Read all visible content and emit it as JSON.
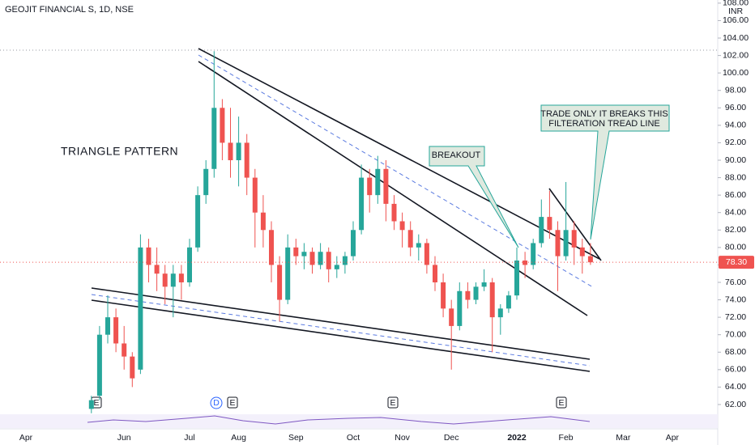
{
  "chart_data": {
    "type": "candlestick",
    "title": "GEOJIT FINANCIAL S, 1D, NSE",
    "currency": "INR",
    "up_color": "#26a69a",
    "down_color": "#ef5350",
    "categories": [
      "Apr",
      null,
      null,
      null,
      null,
      null,
      null,
      null,
      null,
      null,
      null,
      null,
      "Jun",
      null,
      null,
      null,
      null,
      null,
      null,
      null,
      "Jul",
      null,
      null,
      null,
      null,
      null,
      "Aug",
      null,
      null,
      null,
      null,
      null,
      null,
      "Sep",
      null,
      null,
      null,
      null,
      null,
      null,
      "Oct",
      null,
      null,
      null,
      null,
      null,
      "Nov",
      null,
      null,
      null,
      null,
      null,
      "Dec",
      null,
      null,
      null,
      null,
      null,
      null,
      null,
      "2022",
      null,
      null,
      null,
      null,
      null,
      "Feb",
      null,
      null,
      null,
      null,
      null,
      null,
      "Mar",
      null,
      null,
      null,
      null,
      null,
      "Apr"
    ],
    "open": [
      null,
      null,
      null,
      null,
      null,
      null,
      null,
      null,
      61.5,
      63,
      70,
      72,
      69,
      67.5,
      66,
      80,
      78,
      77,
      75.5,
      77,
      76,
      80,
      86,
      89,
      96,
      92,
      90,
      92,
      88,
      84,
      82,
      78,
      74,
      80,
      79,
      79.5,
      78,
      79.5,
      77.5,
      78,
      79,
      82,
      88,
      86,
      89,
      85,
      83,
      82,
      80,
      80.5,
      78,
      76,
      73,
      71,
      75,
      74,
      75.5,
      76,
      72,
      73,
      74.5,
      78.5,
      78,
      80.5,
      83.5,
      82,
      79,
      82,
      80,
      79,
      null,
      null,
      null,
      null,
      null,
      null,
      null,
      null,
      null,
      null
    ],
    "high": [
      null,
      null,
      null,
      null,
      null,
      null,
      null,
      null,
      63,
      71,
      74.5,
      73,
      71,
      68,
      81.5,
      81,
      80,
      78,
      78,
      78,
      81,
      87,
      90,
      102.5,
      97,
      96,
      95,
      93,
      89,
      86,
      83,
      79,
      81.5,
      81,
      80.5,
      80,
      80.5,
      80,
      79,
      79.5,
      83,
      89.5,
      89,
      90.5,
      90,
      86,
      84,
      83,
      81.5,
      81,
      79,
      77,
      74,
      76,
      76,
      76,
      77.5,
      76.5,
      73.5,
      75,
      80,
      79.5,
      81,
      85.5,
      86.5,
      83,
      87.5,
      83,
      81,
      80.5,
      null,
      null,
      null,
      null,
      null,
      null,
      null,
      null,
      null,
      null
    ],
    "low": [
      null,
      null,
      null,
      null,
      null,
      null,
      null,
      null,
      61,
      62.5,
      69,
      68,
      66,
      64,
      65.5,
      76,
      75,
      73.5,
      72,
      74,
      75.5,
      79.5,
      85,
      88,
      90,
      88,
      87,
      86,
      80,
      80,
      76,
      71.5,
      73.5,
      78,
      77.5,
      77,
      77.5,
      76,
      76.5,
      77,
      78.5,
      81.5,
      84,
      85,
      83,
      82,
      80,
      79,
      78.5,
      77,
      75,
      72,
      66,
      70.5,
      73,
      73.5,
      75,
      68,
      70,
      72.5,
      74,
      76.5,
      77.5,
      80,
      81,
      75,
      78.5,
      78,
      77,
      78,
      null,
      null,
      null,
      null,
      null,
      null,
      null,
      null,
      null,
      null
    ],
    "close": [
      null,
      null,
      null,
      null,
      null,
      null,
      null,
      null,
      62.5,
      70,
      72,
      69,
      67.5,
      65,
      80,
      78,
      77,
      75.5,
      77,
      76,
      80,
      86,
      89,
      96,
      92,
      90,
      92,
      88,
      84,
      82,
      78,
      74,
      80,
      79,
      79.5,
      78,
      79.5,
      77.5,
      78,
      79,
      82,
      88,
      86,
      89,
      85,
      83,
      82,
      80,
      80.5,
      78,
      76,
      73,
      71,
      75,
      74,
      75.5,
      76,
      72,
      73,
      74.5,
      78.5,
      78,
      80.5,
      83.5,
      82,
      79,
      82,
      80,
      79,
      78.3,
      null,
      null,
      null,
      null,
      null,
      null,
      null,
      null,
      null,
      null
    ],
    "ylim": [
      61.07,
      108.36
    ],
    "yticks": [
      {
        "value": 62,
        "label": "62.00"
      },
      {
        "value": 64,
        "label": "64.00"
      },
      {
        "value": 66,
        "label": "66.00"
      },
      {
        "value": 68,
        "label": "68.00"
      },
      {
        "value": 70,
        "label": "70.00"
      },
      {
        "value": 72,
        "label": "72.00"
      },
      {
        "value": 74,
        "label": "74.00"
      },
      {
        "value": 76,
        "label": "76.00"
      },
      {
        "value": 78,
        "label": "78.00"
      },
      {
        "value": 80,
        "label": "80.00"
      },
      {
        "value": 82,
        "label": "82.00"
      },
      {
        "value": 84,
        "label": "84.00"
      },
      {
        "value": 86,
        "label": "86.00"
      },
      {
        "value": 88,
        "label": "88.00"
      },
      {
        "value": 90,
        "label": "90.00"
      },
      {
        "value": 92,
        "label": "92.00"
      },
      {
        "value": 94,
        "label": "94.00"
      },
      {
        "value": 96,
        "label": "96.00"
      },
      {
        "value": 98,
        "label": "98.00"
      },
      {
        "value": 100,
        "label": "100.00"
      },
      {
        "value": 102,
        "label": "102.00"
      },
      {
        "value": 104,
        "label": "104.00"
      },
      {
        "value": 106,
        "label": "106.00"
      },
      {
        "value": 108,
        "label": "108.00"
      }
    ],
    "last_price": {
      "value": 78.3,
      "label": "78.30"
    },
    "notes": {
      "pattern": "TRIANGLE PATTERN",
      "breakout": "BREAKOUT",
      "filter": [
        "TRADE ONLY IT BREAKS THIS",
        "FILTERATION TREAD LINE"
      ]
    },
    "events": [
      "E",
      "D",
      "E",
      "E",
      "E"
    ]
  }
}
